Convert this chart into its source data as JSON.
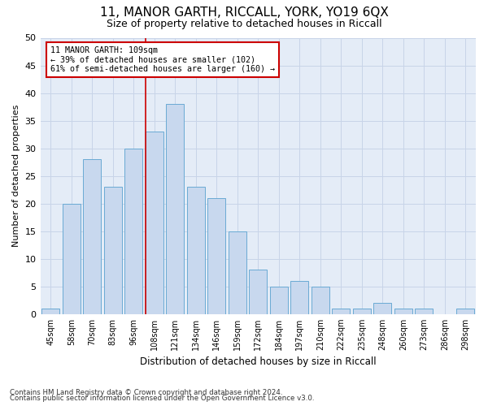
{
  "title": "11, MANOR GARTH, RICCALL, YORK, YO19 6QX",
  "subtitle": "Size of property relative to detached houses in Riccall",
  "xlabel": "Distribution of detached houses by size in Riccall",
  "ylabel": "Number of detached properties",
  "categories": [
    "45sqm",
    "58sqm",
    "70sqm",
    "83sqm",
    "96sqm",
    "108sqm",
    "121sqm",
    "134sqm",
    "146sqm",
    "159sqm",
    "172sqm",
    "184sqm",
    "197sqm",
    "210sqm",
    "222sqm",
    "235sqm",
    "248sqm",
    "260sqm",
    "273sqm",
    "286sqm",
    "298sqm"
  ],
  "values": [
    1,
    20,
    28,
    23,
    30,
    33,
    38,
    23,
    21,
    15,
    8,
    5,
    6,
    5,
    1,
    1,
    2,
    1,
    1,
    0,
    1
  ],
  "bar_color": "#c8d8ee",
  "bar_edge_color": "#6aaad4",
  "ylim": [
    0,
    50
  ],
  "yticks": [
    0,
    5,
    10,
    15,
    20,
    25,
    30,
    35,
    40,
    45,
    50
  ],
  "vline_index": 5,
  "annotation_box_text": "11 MANOR GARTH: 109sqm\n← 39% of detached houses are smaller (102)\n61% of semi-detached houses are larger (160) →",
  "annotation_box_color": "#ffffff",
  "annotation_box_edge_color": "#cc0000",
  "vline_color": "#cc0000",
  "grid_color": "#c8d4e8",
  "bg_color": "#e4ecf7",
  "footer1": "Contains HM Land Registry data © Crown copyright and database right 2024.",
  "footer2": "Contains public sector information licensed under the Open Government Licence v3.0."
}
